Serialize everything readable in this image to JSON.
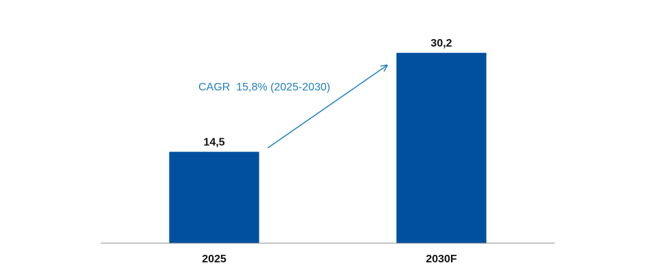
{
  "colors": {
    "bar": "#0050A0",
    "annotation": "#1F7FC0",
    "axis": "#888888",
    "label": "#111111"
  },
  "chart_data": {
    "type": "bar",
    "categories": [
      "2025",
      "2030F"
    ],
    "values": [
      14.5,
      30.2
    ],
    "data_labels": [
      "14,5",
      "30,2"
    ],
    "title": "",
    "xlabel": "",
    "ylabel": "",
    "ylim": [
      0,
      33
    ],
    "grid": false,
    "legend": "none",
    "annotations": [
      {
        "text": "CAGR  15,8% (2025-2030)",
        "type": "arrow",
        "from_category": "2025",
        "to_category": "2030F"
      }
    ]
  }
}
